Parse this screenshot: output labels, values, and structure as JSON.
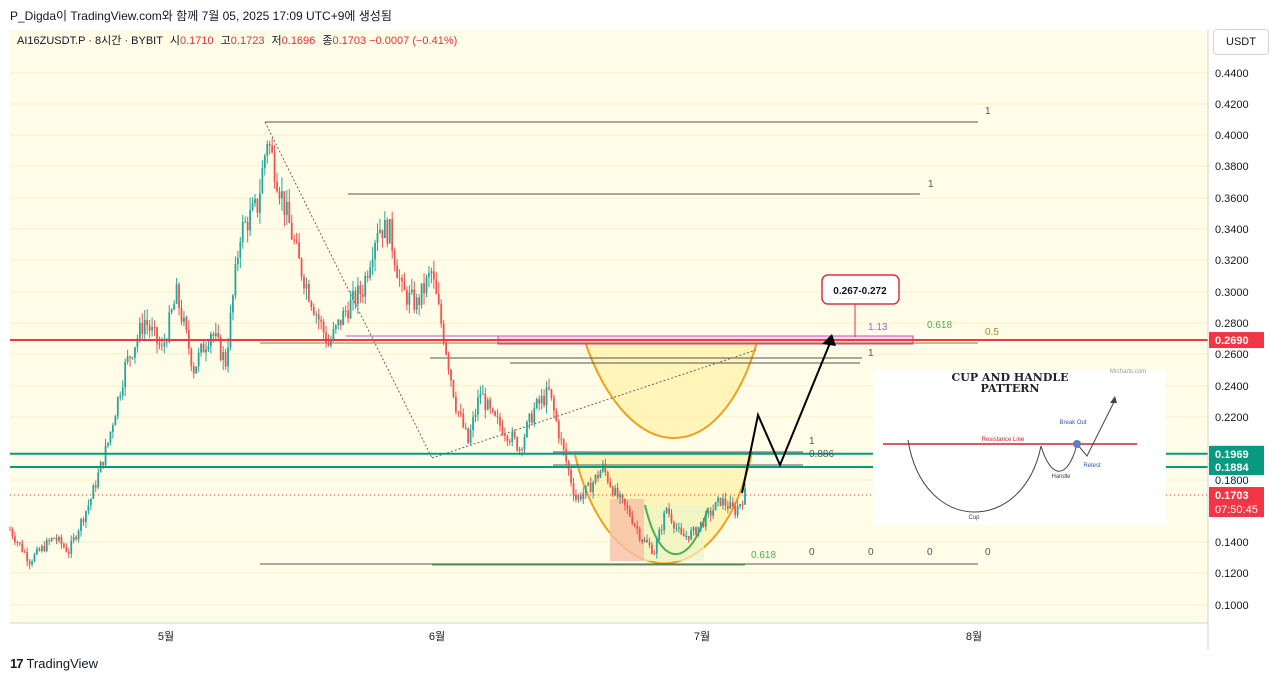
{
  "header": {
    "publisher_line": "P_Digda이 TradingView.com와 함께 7월 05, 2025 17:09 UTC+9에 생성됨"
  },
  "symbol_bar": {
    "symbol": "AI16ZUSDT.P · 8시간 · BYBIT",
    "open_label": "시",
    "open": "0.1710",
    "high_label": "고",
    "high": "0.1723",
    "low_label": "저",
    "low": "0.1696",
    "close_label": "종",
    "close": "0.1703",
    "change": "−0.0007 (−0.41%)"
  },
  "currency_button": "USDT",
  "footer": {
    "logo": "17",
    "brand": "TradingView"
  },
  "colors": {
    "up": "#26a69a",
    "down": "#ef5350",
    "resistance": "#f23645",
    "support": "#089981",
    "cup_fill": "#fff3b0",
    "cup_stroke": "#f0a020",
    "inner_cup": "#4caf50",
    "price_tag": "#f23645"
  },
  "chart_data": {
    "type": "candlestick",
    "ylim": [
      0.08,
      0.46
    ],
    "y_ticks": [
      "0.4400",
      "0.4200",
      "0.4000",
      "0.3800",
      "0.3600",
      "0.3400",
      "0.3200",
      "0.3000",
      "0.2800",
      "0.2600",
      "0.2400",
      "0.2200",
      "0.1800",
      "0.1400",
      "0.1200",
      "0.1000"
    ],
    "x_ticks": [
      "5월",
      "6월",
      "7월",
      "8월"
    ],
    "price_path": [
      {
        "b": 0,
        "p": 0.148
      },
      {
        "b": 8,
        "p": 0.128
      },
      {
        "b": 18,
        "p": 0.143
      },
      {
        "b": 24,
        "p": 0.134
      },
      {
        "b": 33,
        "p": 0.168
      },
      {
        "b": 40,
        "p": 0.204
      },
      {
        "b": 47,
        "p": 0.252
      },
      {
        "b": 55,
        "p": 0.282
      },
      {
        "b": 62,
        "p": 0.262
      },
      {
        "b": 68,
        "p": 0.298
      },
      {
        "b": 75,
        "p": 0.251
      },
      {
        "b": 82,
        "p": 0.275
      },
      {
        "b": 88,
        "p": 0.255
      },
      {
        "b": 94,
        "p": 0.338
      },
      {
        "b": 101,
        "p": 0.355
      },
      {
        "b": 105,
        "p": 0.398
      },
      {
        "b": 112,
        "p": 0.355
      },
      {
        "b": 118,
        "p": 0.318
      },
      {
        "b": 124,
        "p": 0.291
      },
      {
        "b": 130,
        "p": 0.266
      },
      {
        "b": 137,
        "p": 0.288
      },
      {
        "b": 144,
        "p": 0.302
      },
      {
        "b": 150,
        "p": 0.342
      },
      {
        "b": 155,
        "p": 0.338
      },
      {
        "b": 160,
        "p": 0.3
      },
      {
        "b": 166,
        "p": 0.292
      },
      {
        "b": 172,
        "p": 0.312
      },
      {
        "b": 177,
        "p": 0.272
      },
      {
        "b": 182,
        "p": 0.228
      },
      {
        "b": 187,
        "p": 0.204
      },
      {
        "b": 192,
        "p": 0.236
      },
      {
        "b": 197,
        "p": 0.219
      },
      {
        "b": 202,
        "p": 0.212
      },
      {
        "b": 208,
        "p": 0.201
      },
      {
        "b": 214,
        "p": 0.225
      },
      {
        "b": 220,
        "p": 0.236
      },
      {
        "b": 225,
        "p": 0.204
      },
      {
        "b": 231,
        "p": 0.168
      },
      {
        "b": 236,
        "p": 0.174
      },
      {
        "b": 242,
        "p": 0.188
      },
      {
        "b": 247,
        "p": 0.171
      },
      {
        "b": 253,
        "p": 0.158
      },
      {
        "b": 258,
        "p": 0.142
      },
      {
        "b": 263,
        "p": 0.134
      },
      {
        "b": 268,
        "p": 0.162
      },
      {
        "b": 274,
        "p": 0.143
      },
      {
        "b": 279,
        "p": 0.146
      },
      {
        "b": 285,
        "p": 0.157
      },
      {
        "b": 290,
        "p": 0.167
      },
      {
        "b": 296,
        "p": 0.16
      },
      {
        "b": 300,
        "p": 0.171
      }
    ],
    "horizontal_levels": [
      {
        "value": 0.269,
        "role": "resistance",
        "label": "0.2690"
      },
      {
        "value": 0.1969,
        "role": "support",
        "label": "0.1969"
      },
      {
        "value": 0.1884,
        "role": "support",
        "label": "0.1884"
      }
    ],
    "current_price": {
      "value": 0.1703,
      "label": "0.1703",
      "countdown": "07:50:45"
    },
    "fib_labels": [
      "1",
      "1",
      "1.13",
      "0.618",
      "0.5",
      "1",
      "1",
      "0.886",
      "0.618",
      "0",
      "0",
      "0",
      "0"
    ],
    "target_zone": {
      "label": "0.267-0.272",
      "low": 0.267,
      "high": 0.272
    },
    "inset": {
      "title_line1": "CUP AND HANDLE",
      "title_line2": "PATTERN",
      "resistance": "Resistance Line",
      "cup": "Cup",
      "handle": "Handle",
      "breakout": "Break Out",
      "retest": "Retest",
      "watermark": "Mrcharts.com"
    }
  }
}
